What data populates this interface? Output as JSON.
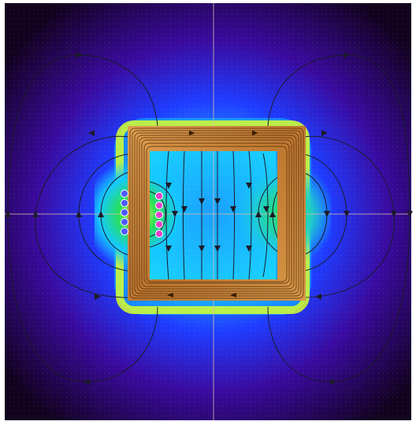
{
  "colors": {
    "background_dark": "#12021e",
    "background_purple": "#3a0a6e",
    "field_blue": "#1f3cff",
    "field_cyan": "#14c8ff",
    "field_green": "#28e05a",
    "field_yellow": "#d8ff2a",
    "core_orange": "#cf8a3a",
    "core_line": "#3a1d05",
    "field_line": "#1b1b2a",
    "axis_line": "#d8b8a8",
    "conductor_in_fill": "#4e58ff",
    "conductor_out_fill": "#e040c8",
    "conductor_edge": "#ffffff"
  },
  "conductors": {
    "left_column_symbol": "",
    "right_column_symbol": ""
  }
}
